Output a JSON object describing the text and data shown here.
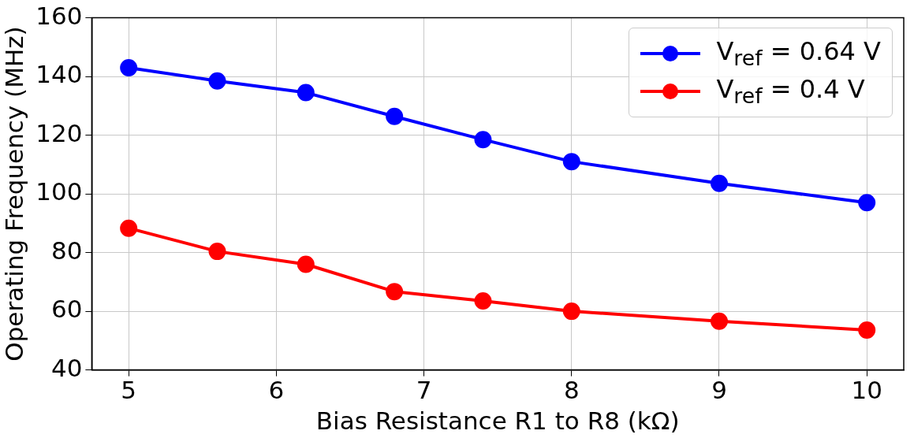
{
  "chart_data": {
    "type": "line",
    "xlabel": "Bias Resistance R1 to R8 (kΩ)",
    "ylabel": "Operating Frequency (MHz)",
    "x": [
      5,
      5.6,
      6.2,
      6.8,
      7.4,
      8,
      9,
      10
    ],
    "series": [
      {
        "name": "V$_{ref}$ = 0.64 V",
        "color": "#0000ff",
        "values": [
          143,
          138.5,
          134.5,
          126.4,
          118.5,
          111,
          103.6,
          97
        ]
      },
      {
        "name": "V$_{ref}$ = 0.4 V",
        "color": "#ff0000",
        "values": [
          88.3,
          80.4,
          76,
          66.7,
          63.5,
          60,
          56.6,
          53.6
        ]
      }
    ],
    "xlim": [
      4.75,
      10.25
    ],
    "xticks": [
      5,
      6,
      7,
      8,
      9,
      10
    ],
    "ylim": [
      40,
      160
    ],
    "yticks": [
      40,
      60,
      80,
      100,
      120,
      140,
      160
    ],
    "grid": true,
    "legend": "top right",
    "marker": "circle",
    "line_style": "solid"
  }
}
